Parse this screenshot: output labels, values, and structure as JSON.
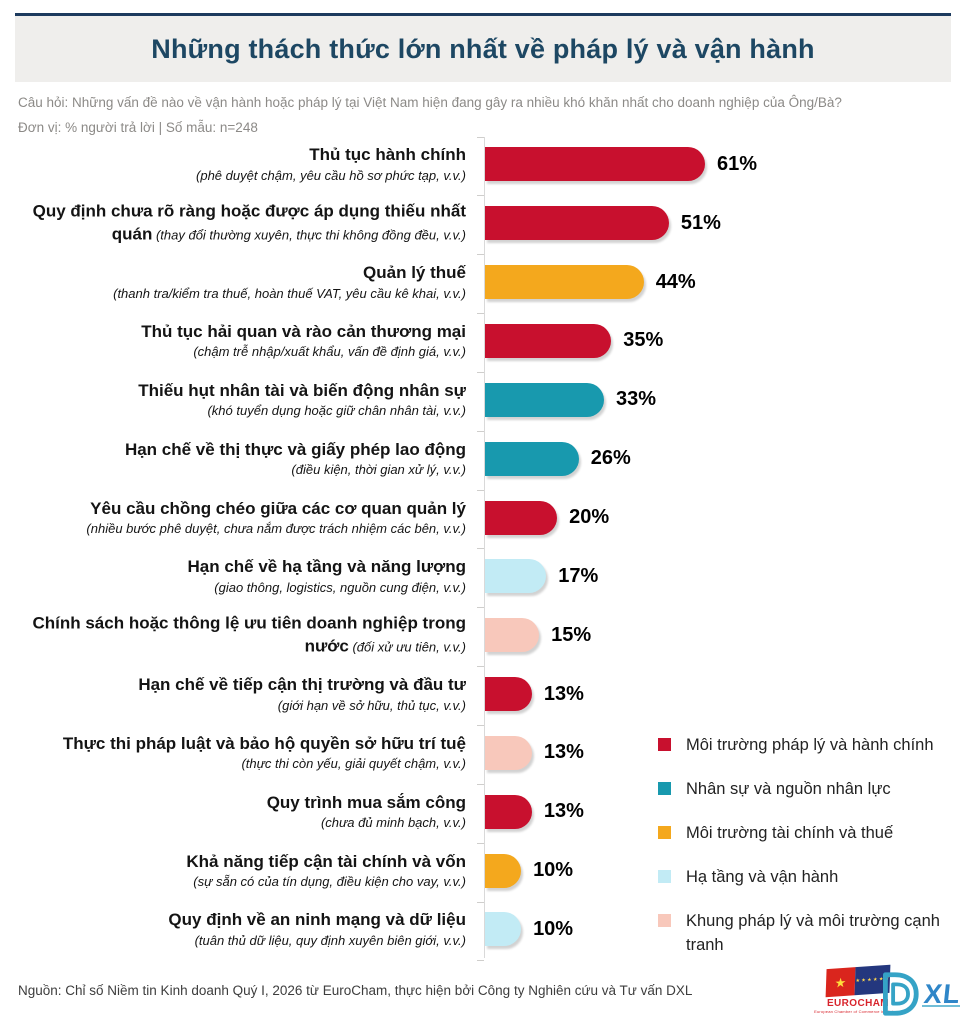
{
  "page": {
    "title": "Những thách thức lớn nhất về pháp lý và vận hành",
    "question": "Câu hỏi: Những vấn đề nào về vận hành hoặc pháp lý tại Việt Nam hiện đang gây ra nhiều khó khăn nhất cho doanh nghiệp của Ông/Bà?",
    "unit_line": "Đơn vị: % người trả lời | Số mẫu: n=248",
    "footer": "Nguồn: Chỉ số Niềm tin Kinh doanh Quý I, 2026 từ EuroCham, thực hiện bởi Công ty Nghiên cứu và Tư vấn DXL"
  },
  "colors": {
    "red": "#C8102E",
    "teal": "#1899AE",
    "yellow": "#F4A81D",
    "lightblue": "#C2EBF5",
    "pink": "#F8C8BB",
    "navy": "#1D4763",
    "axis": "#D9D9D9"
  },
  "chart_data": {
    "type": "bar",
    "orientation": "horizontal",
    "title": "Những thách thức lớn nhất về pháp lý và vận hành",
    "xlabel": "% người trả lời",
    "sample_size": "n=248",
    "xlim": [
      0,
      65
    ],
    "grid": false,
    "legend_position": "bottom-right",
    "bars": [
      {
        "label": "Thủ tục hành chính",
        "sub": "(phê duyệt chậm, yêu cầu hồ sơ phức tạp, v.v.)",
        "value": 61,
        "value_label": "61%",
        "group": "red",
        "sub_inline": false
      },
      {
        "label": "Quy định chưa rõ ràng hoặc được áp dụng thiếu nhất quán",
        "sub": "(thay đổi thường xuyên, thực thi không đồng đều, v.v.)",
        "value": 51,
        "value_label": "51%",
        "group": "red",
        "sub_inline": true
      },
      {
        "label": "Quản lý thuế",
        "sub": "(thanh tra/kiểm tra thuế, hoàn thuế VAT, yêu cầu kê khai, v.v.)",
        "value": 44,
        "value_label": "44%",
        "group": "yellow",
        "sub_inline": false
      },
      {
        "label": "Thủ tục hải quan và rào cản thương mại",
        "sub": "(chậm trễ nhập/xuất khẩu, vấn đề định giá, v.v.)",
        "value": 35,
        "value_label": "35%",
        "group": "red",
        "sub_inline": false
      },
      {
        "label": "Thiếu hụt nhân tài và biến động nhân sự",
        "sub": "(khó tuyển dụng hoặc giữ chân nhân tài, v.v.)",
        "value": 33,
        "value_label": "33%",
        "group": "teal",
        "sub_inline": false
      },
      {
        "label": "Hạn chế về thị thực và giấy phép lao động",
        "sub": "(điều kiện, thời gian xử lý, v.v.)",
        "value": 26,
        "value_label": "26%",
        "group": "teal",
        "sub_inline": false
      },
      {
        "label": "Yêu cầu chồng chéo giữa các cơ quan quản lý",
        "sub": "(nhiều bước phê duyệt, chưa nắm được trách nhiệm các bên, v.v.)",
        "value": 20,
        "value_label": "20%",
        "group": "red",
        "sub_inline": false
      },
      {
        "label": "Hạn chế về hạ tầng và năng lượng",
        "sub": "(giao thông, logistics, nguồn cung điện, v.v.)",
        "value": 17,
        "value_label": "17%",
        "group": "lightblue",
        "sub_inline": false
      },
      {
        "label": "Chính sách hoặc thông lệ ưu tiên doanh nghiệp trong nước",
        "sub": "(đối xử ưu tiên, v.v.)",
        "value": 15,
        "value_label": "15%",
        "group": "pink",
        "sub_inline": true
      },
      {
        "label": "Hạn chế về tiếp cận thị trường và đầu tư",
        "sub": "(giới hạn về sở hữu, thủ tục, v.v.)",
        "value": 13,
        "value_label": "13%",
        "group": "red",
        "sub_inline": false
      },
      {
        "label": "Thực thi pháp luật và bảo hộ quyền sở hữu trí tuệ",
        "sub": "(thực thi còn yếu, giải quyết chậm, v.v.)",
        "value": 13,
        "value_label": "13%",
        "group": "pink",
        "sub_inline": false
      },
      {
        "label": "Quy trình mua sắm công",
        "sub": "(chưa đủ minh bạch, v.v.)",
        "value": 13,
        "value_label": "13%",
        "group": "red",
        "sub_inline": false
      },
      {
        "label": "Khả năng tiếp cận tài chính và vốn",
        "sub": "(sự sẵn có của tín dụng, điều kiện cho vay, v.v.)",
        "value": 10,
        "value_label": "10%",
        "group": "yellow",
        "sub_inline": false
      },
      {
        "label": "Quy định về an ninh mạng và dữ liệu",
        "sub": "(tuân thủ dữ liệu, quy định xuyên biên giới, v.v.)",
        "value": 10,
        "value_label": "10%",
        "group": "lightblue",
        "sub_inline": false
      }
    ],
    "legend": [
      {
        "label": "Môi trường pháp lý và hành chính",
        "group": "red"
      },
      {
        "label": "Nhân sự và nguồn nhân lực",
        "group": "teal"
      },
      {
        "label": "Môi trường tài chính và thuế",
        "group": "yellow"
      },
      {
        "label": "Hạ tầng và vận hành",
        "group": "lightblue"
      },
      {
        "label": "Khung pháp lý và môi trường cạnh tranh",
        "group": "pink"
      }
    ]
  },
  "logos": {
    "eurocham": {
      "wordmark": "EUROCHAM",
      "tagline": "European Chamber of Commerce in Vietnam",
      "flag_star": "★",
      "eu_stars": "★ ★ ★ ★ ★ ★"
    },
    "dxl": {
      "wordmark": "XL"
    }
  }
}
